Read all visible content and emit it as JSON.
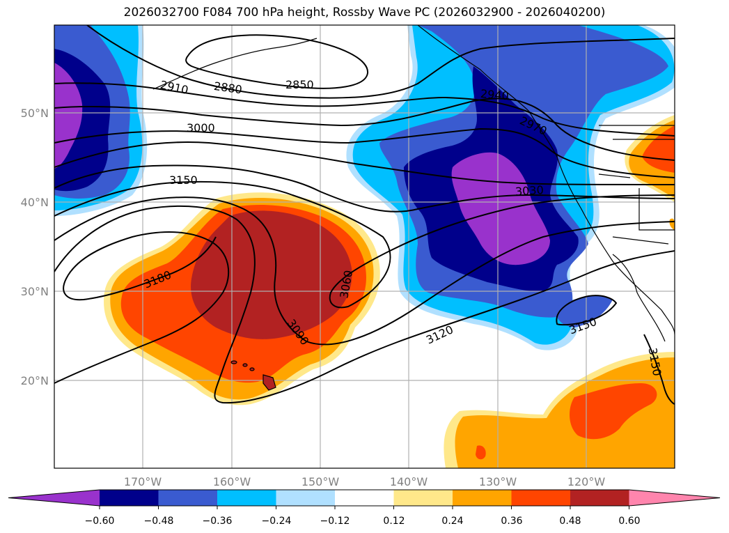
{
  "title": "2026032700 F084 700 hPa height, Rossby Wave PC (2026032900 - 2026040200)",
  "axes": {
    "lat_ticks": [
      "50°N",
      "40°N",
      "30°N",
      "20°N"
    ],
    "lon_ticks": [
      "170°W",
      "160°W",
      "150°W",
      "140°W",
      "130°W",
      "120°W"
    ]
  },
  "contour_labels": [
    "2850",
    "2880",
    "2910",
    "2940",
    "2970",
    "3000",
    "3030",
    "3060",
    "3090",
    "3120",
    "3150",
    "3150",
    "3150",
    "3180"
  ],
  "colorbar": {
    "ticks": [
      "−0.60",
      "−0.48",
      "−0.36",
      "−0.24",
      "−0.12",
      "0.12",
      "0.24",
      "0.36",
      "0.48",
      "0.60"
    ],
    "colors": [
      "#9932cc",
      "#00008b",
      "#3a5bd0",
      "#00bfff",
      "#b0e0ff",
      "#ffffff",
      "#ffe88a",
      "#ffa500",
      "#ff4500",
      "#b22222",
      "#ff85ad"
    ]
  },
  "colors": {
    "purple": "#9932cc",
    "navy": "#00008b",
    "blue": "#3a5bd0",
    "cyan": "#00bfff",
    "lightblue": "#b0e0ff",
    "yellow": "#ffe88a",
    "orange": "#ffa500",
    "redorange": "#ff4500",
    "darkred": "#b22222",
    "pink": "#ff85ad"
  }
}
